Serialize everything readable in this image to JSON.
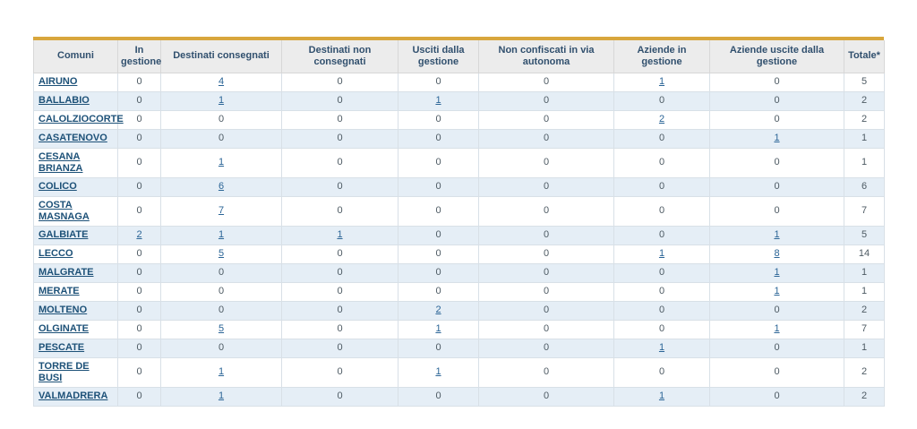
{
  "colors": {
    "accent_gold": "#d8a63d",
    "header_bg": "#ececec",
    "header_text": "#31506e",
    "stripe_blue": "#e5eef6",
    "comune_link": "#1d5178",
    "number_link": "#2a6496",
    "plain_text": "#4d5a63"
  },
  "table": {
    "columns": [
      {
        "label": "Comuni"
      },
      {
        "label": "In gestione"
      },
      {
        "label": "Destinati consegnati"
      },
      {
        "label": "Destinati non consegnati"
      },
      {
        "label": "Usciti dalla gestione"
      },
      {
        "label": "Non confiscati in via autonoma"
      },
      {
        "label": "Aziende in gestione"
      },
      {
        "label": "Aziende uscite dalla gestione"
      },
      {
        "label": "Totale*"
      }
    ],
    "rows": [
      {
        "comune": "AIRUNO",
        "cells": [
          {
            "v": "0",
            "link": false
          },
          {
            "v": "4",
            "link": true
          },
          {
            "v": "0",
            "link": false
          },
          {
            "v": "0",
            "link": false
          },
          {
            "v": "0",
            "link": false
          },
          {
            "v": "1",
            "link": true
          },
          {
            "v": "0",
            "link": false
          }
        ],
        "totale": "5"
      },
      {
        "comune": "BALLABIO",
        "cells": [
          {
            "v": "0",
            "link": false
          },
          {
            "v": "1",
            "link": true
          },
          {
            "v": "0",
            "link": false
          },
          {
            "v": "1",
            "link": true
          },
          {
            "v": "0",
            "link": false
          },
          {
            "v": "0",
            "link": false
          },
          {
            "v": "0",
            "link": false
          }
        ],
        "totale": "2"
      },
      {
        "comune": "CALOLZIOCORTE",
        "cells": [
          {
            "v": "0",
            "link": false
          },
          {
            "v": "0",
            "link": false
          },
          {
            "v": "0",
            "link": false
          },
          {
            "v": "0",
            "link": false
          },
          {
            "v": "0",
            "link": false
          },
          {
            "v": "2",
            "link": true
          },
          {
            "v": "0",
            "link": false
          }
        ],
        "totale": "2"
      },
      {
        "comune": "CASATENOVO",
        "cells": [
          {
            "v": "0",
            "link": false
          },
          {
            "v": "0",
            "link": false
          },
          {
            "v": "0",
            "link": false
          },
          {
            "v": "0",
            "link": false
          },
          {
            "v": "0",
            "link": false
          },
          {
            "v": "0",
            "link": false
          },
          {
            "v": "1",
            "link": true
          }
        ],
        "totale": "1"
      },
      {
        "comune": "CESANA BRIANZA",
        "cells": [
          {
            "v": "0",
            "link": false
          },
          {
            "v": "1",
            "link": true
          },
          {
            "v": "0",
            "link": false
          },
          {
            "v": "0",
            "link": false
          },
          {
            "v": "0",
            "link": false
          },
          {
            "v": "0",
            "link": false
          },
          {
            "v": "0",
            "link": false
          }
        ],
        "totale": "1"
      },
      {
        "comune": "COLICO",
        "cells": [
          {
            "v": "0",
            "link": false
          },
          {
            "v": "6",
            "link": true
          },
          {
            "v": "0",
            "link": false
          },
          {
            "v": "0",
            "link": false
          },
          {
            "v": "0",
            "link": false
          },
          {
            "v": "0",
            "link": false
          },
          {
            "v": "0",
            "link": false
          }
        ],
        "totale": "6"
      },
      {
        "comune": "COSTA MASNAGA",
        "cells": [
          {
            "v": "0",
            "link": false
          },
          {
            "v": "7",
            "link": true
          },
          {
            "v": "0",
            "link": false
          },
          {
            "v": "0",
            "link": false
          },
          {
            "v": "0",
            "link": false
          },
          {
            "v": "0",
            "link": false
          },
          {
            "v": "0",
            "link": false
          }
        ],
        "totale": "7"
      },
      {
        "comune": "GALBIATE",
        "cells": [
          {
            "v": "2",
            "link": true
          },
          {
            "v": "1",
            "link": true
          },
          {
            "v": "1",
            "link": true
          },
          {
            "v": "0",
            "link": false
          },
          {
            "v": "0",
            "link": false
          },
          {
            "v": "0",
            "link": false
          },
          {
            "v": "1",
            "link": true
          }
        ],
        "totale": "5"
      },
      {
        "comune": "LECCO",
        "cells": [
          {
            "v": "0",
            "link": false
          },
          {
            "v": "5",
            "link": true
          },
          {
            "v": "0",
            "link": false
          },
          {
            "v": "0",
            "link": false
          },
          {
            "v": "0",
            "link": false
          },
          {
            "v": "1",
            "link": true
          },
          {
            "v": "8",
            "link": true
          }
        ],
        "totale": "14"
      },
      {
        "comune": "MALGRATE",
        "cells": [
          {
            "v": "0",
            "link": false
          },
          {
            "v": "0",
            "link": false
          },
          {
            "v": "0",
            "link": false
          },
          {
            "v": "0",
            "link": false
          },
          {
            "v": "0",
            "link": false
          },
          {
            "v": "0",
            "link": false
          },
          {
            "v": "1",
            "link": true
          }
        ],
        "totale": "1"
      },
      {
        "comune": "MERATE",
        "cells": [
          {
            "v": "0",
            "link": false
          },
          {
            "v": "0",
            "link": false
          },
          {
            "v": "0",
            "link": false
          },
          {
            "v": "0",
            "link": false
          },
          {
            "v": "0",
            "link": false
          },
          {
            "v": "0",
            "link": false
          },
          {
            "v": "1",
            "link": true
          }
        ],
        "totale": "1"
      },
      {
        "comune": "MOLTENO",
        "cells": [
          {
            "v": "0",
            "link": false
          },
          {
            "v": "0",
            "link": false
          },
          {
            "v": "0",
            "link": false
          },
          {
            "v": "2",
            "link": true
          },
          {
            "v": "0",
            "link": false
          },
          {
            "v": "0",
            "link": false
          },
          {
            "v": "0",
            "link": false
          }
        ],
        "totale": "2"
      },
      {
        "comune": "OLGINATE",
        "cells": [
          {
            "v": "0",
            "link": false
          },
          {
            "v": "5",
            "link": true
          },
          {
            "v": "0",
            "link": false
          },
          {
            "v": "1",
            "link": true
          },
          {
            "v": "0",
            "link": false
          },
          {
            "v": "0",
            "link": false
          },
          {
            "v": "1",
            "link": true
          }
        ],
        "totale": "7"
      },
      {
        "comune": "PESCATE",
        "cells": [
          {
            "v": "0",
            "link": false
          },
          {
            "v": "0",
            "link": false
          },
          {
            "v": "0",
            "link": false
          },
          {
            "v": "0",
            "link": false
          },
          {
            "v": "0",
            "link": false
          },
          {
            "v": "1",
            "link": true
          },
          {
            "v": "0",
            "link": false
          }
        ],
        "totale": "1"
      },
      {
        "comune": "TORRE DE BUSI",
        "cells": [
          {
            "v": "0",
            "link": false
          },
          {
            "v": "1",
            "link": true
          },
          {
            "v": "0",
            "link": false
          },
          {
            "v": "1",
            "link": true
          },
          {
            "v": "0",
            "link": false
          },
          {
            "v": "0",
            "link": false
          },
          {
            "v": "0",
            "link": false
          }
        ],
        "totale": "2"
      },
      {
        "comune": "VALMADRERA",
        "cells": [
          {
            "v": "0",
            "link": false
          },
          {
            "v": "1",
            "link": true
          },
          {
            "v": "0",
            "link": false
          },
          {
            "v": "0",
            "link": false
          },
          {
            "v": "0",
            "link": false
          },
          {
            "v": "1",
            "link": true
          },
          {
            "v": "0",
            "link": false
          }
        ],
        "totale": "2"
      }
    ]
  }
}
